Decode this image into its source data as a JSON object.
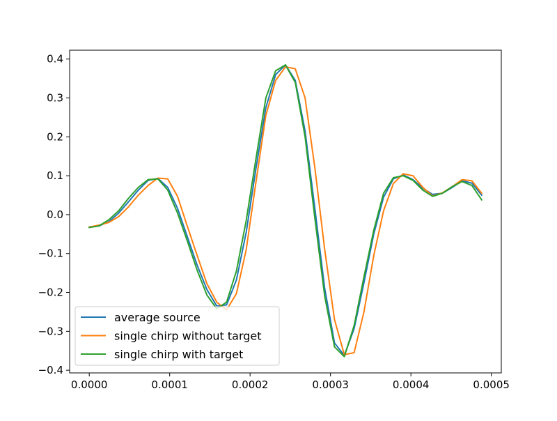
{
  "chart_data": {
    "type": "line",
    "title": "",
    "xlabel": "",
    "ylabel": "",
    "xlim": [
      -2.44e-05,
      0.0005124
    ],
    "ylim": [
      -0.4069,
      0.4228
    ],
    "x_ticks": [
      0,
      0.0001,
      0.0002,
      0.0003,
      0.0004,
      0.0005
    ],
    "x_tick_labels": [
      "0.0000",
      "0.0001",
      "0.0002",
      "0.0003",
      "0.0004",
      "0.0005"
    ],
    "y_ticks": [
      -0.4,
      -0.3,
      -0.2,
      -0.1,
      0.0,
      0.1,
      0.2,
      0.3,
      0.4
    ],
    "y_tick_labels": [
      "−0.4",
      "−0.3",
      "−0.2",
      "−0.1",
      "0.0",
      "0.1",
      "0.2",
      "0.3",
      "0.4"
    ],
    "grid": false,
    "legend_position": "lower-left",
    "x": [
      0,
      1.22e-05,
      2.44e-05,
      3.66e-05,
      4.88e-05,
      6.1e-05,
      7.32e-05,
      8.54e-05,
      9.76e-05,
      0.0001098,
      0.000122,
      0.0001342,
      0.0001464,
      0.0001586,
      0.0001708,
      0.000183,
      0.0001952,
      0.0002074,
      0.0002196,
      0.0002318,
      0.000244,
      0.0002562,
      0.0002684,
      0.0002806,
      0.0002928,
      0.000305,
      0.0003172,
      0.0003294,
      0.0003416,
      0.0003538,
      0.000366,
      0.0003782,
      0.0003904,
      0.0004026,
      0.0004148,
      0.000427,
      0.0004392,
      0.0004514,
      0.0004636,
      0.0004758,
      0.000488
    ],
    "series": [
      {
        "name": "average source",
        "color": "#1f77b4",
        "values": [
          -0.032,
          -0.029,
          -0.018,
          0.004,
          0.033,
          0.063,
          0.088,
          0.093,
          0.07,
          0.016,
          -0.057,
          -0.13,
          -0.193,
          -0.235,
          -0.232,
          -0.168,
          -0.045,
          0.12,
          0.275,
          0.36,
          0.385,
          0.345,
          0.215,
          0.015,
          -0.19,
          -0.33,
          -0.362,
          -0.293,
          -0.175,
          -0.05,
          0.045,
          0.092,
          0.102,
          0.09,
          0.068,
          0.052,
          0.055,
          0.07,
          0.087,
          0.081,
          0.05
        ]
      },
      {
        "name": "single chirp without target",
        "color": "#ff7f0e",
        "values": [
          -0.032,
          -0.027,
          -0.02,
          -0.005,
          0.02,
          0.05,
          0.075,
          0.094,
          0.092,
          0.047,
          -0.03,
          -0.105,
          -0.178,
          -0.225,
          -0.245,
          -0.203,
          -0.09,
          0.085,
          0.255,
          0.345,
          0.38,
          0.375,
          0.3,
          0.12,
          -0.09,
          -0.27,
          -0.36,
          -0.355,
          -0.25,
          -0.105,
          0.01,
          0.08,
          0.105,
          0.1,
          0.07,
          0.048,
          0.056,
          0.072,
          0.09,
          0.087,
          0.055
        ]
      },
      {
        "name": "single chirp with target",
        "color": "#2ca02c",
        "values": [
          -0.033,
          -0.029,
          -0.013,
          0.01,
          0.042,
          0.07,
          0.09,
          0.092,
          0.063,
          0.004,
          -0.068,
          -0.143,
          -0.207,
          -0.242,
          -0.225,
          -0.145,
          -0.015,
          0.145,
          0.3,
          0.37,
          0.385,
          0.34,
          0.2,
          -0.01,
          -0.21,
          -0.34,
          -0.365,
          -0.285,
          -0.16,
          -0.04,
          0.055,
          0.095,
          0.1,
          0.088,
          0.063,
          0.047,
          0.055,
          0.072,
          0.085,
          0.075,
          0.038
        ]
      }
    ]
  }
}
